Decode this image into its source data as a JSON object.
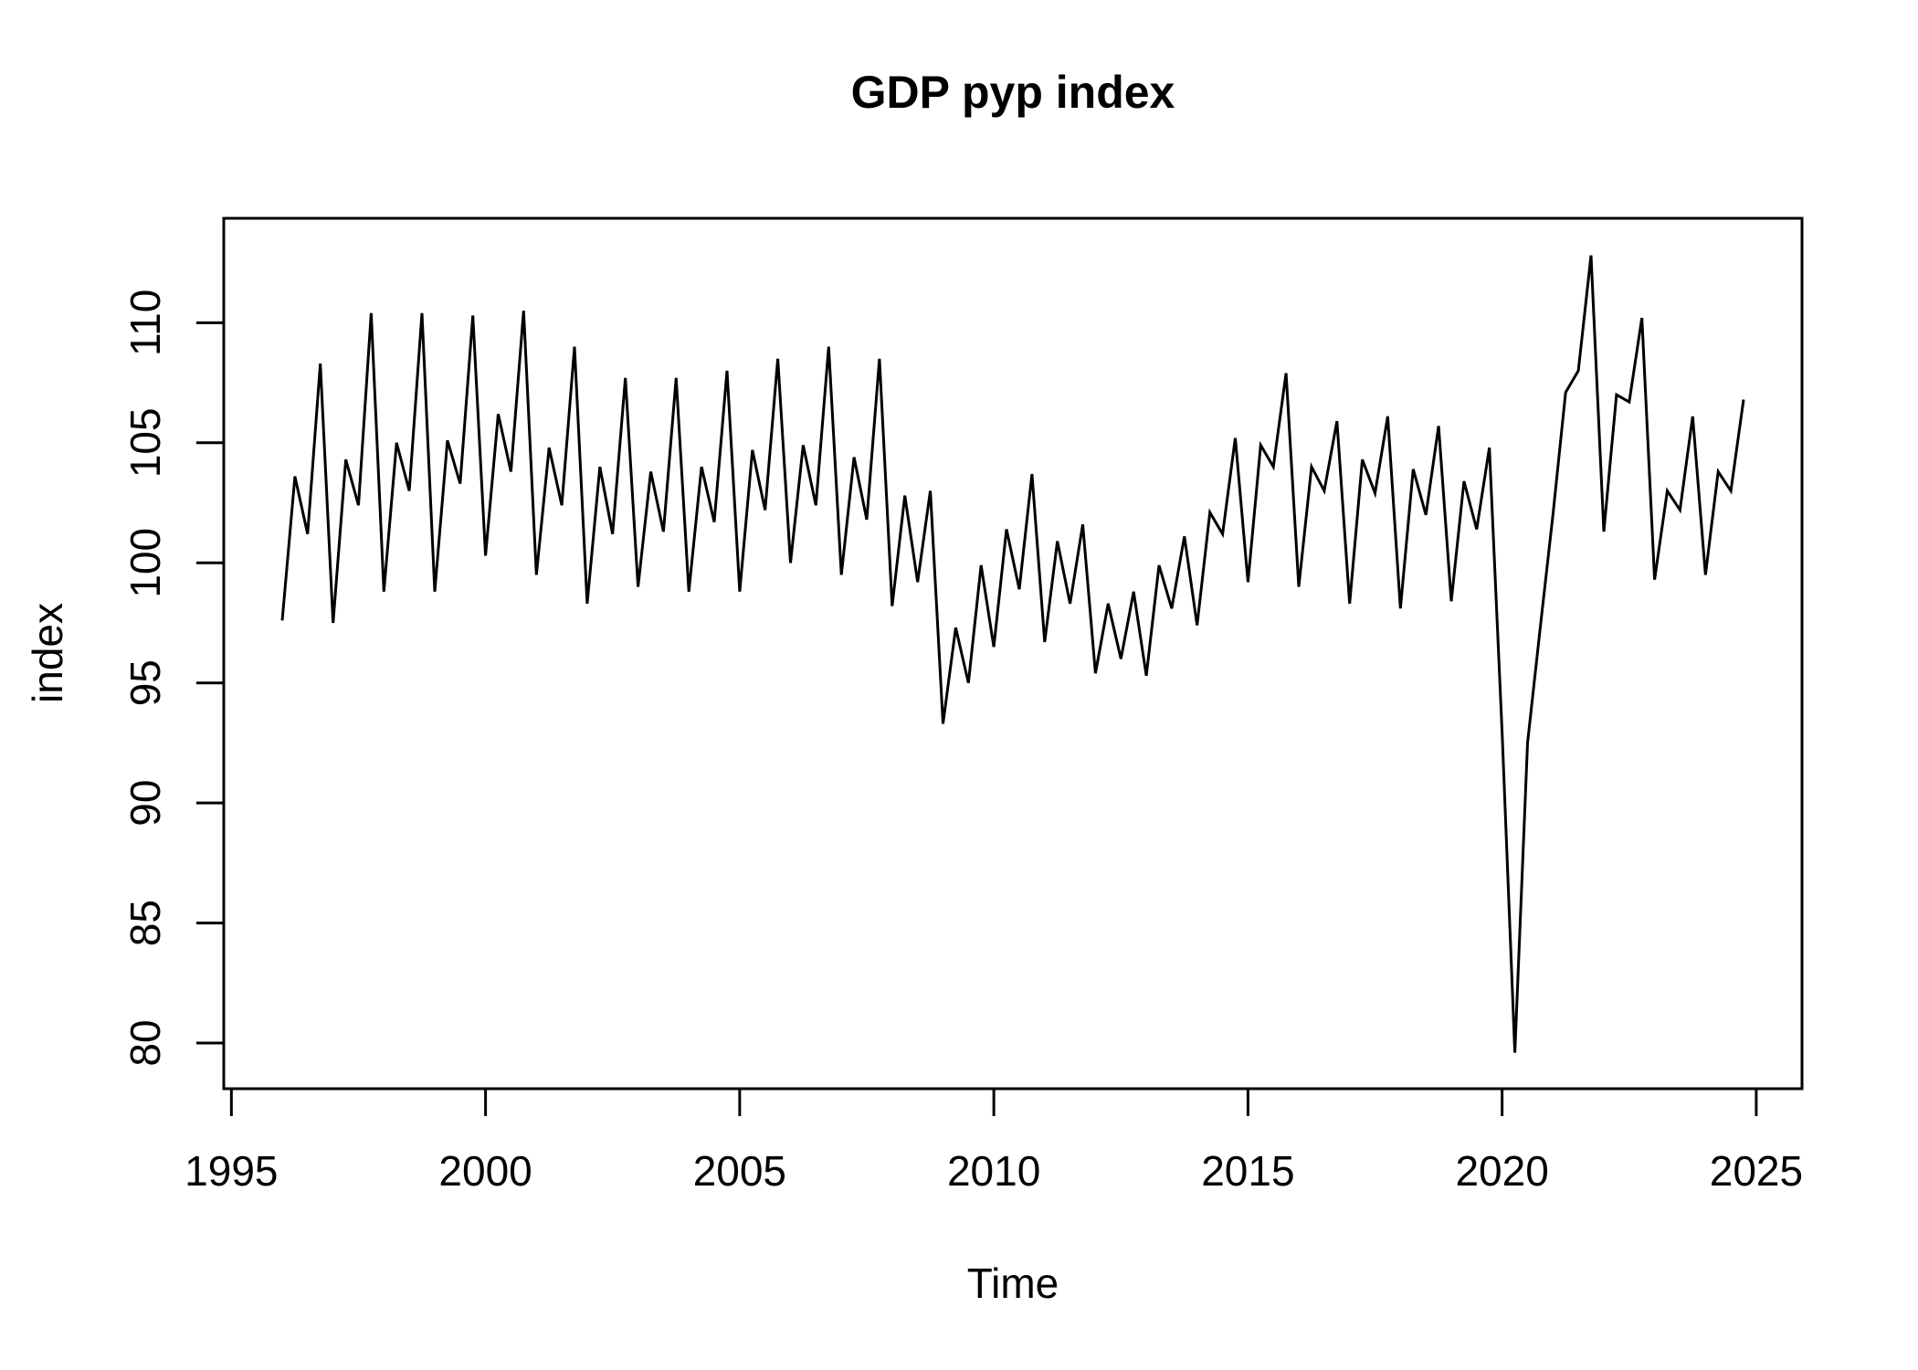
{
  "title": "GDP pyp index",
  "x_axis_label": "Time",
  "y_axis_label": "index",
  "chart_data": {
    "type": "line",
    "title": "GDP pyp index",
    "xlabel": "Time",
    "ylabel": "index",
    "line_color": "#000000",
    "background_color": "#ffffff",
    "grid": false,
    "frequency": "quarterly",
    "x_start": 1996.0,
    "x_step": 0.25,
    "x_ticks": [
      1995,
      2000,
      2005,
      2010,
      2015,
      2020,
      2025
    ],
    "y_ticks": [
      80,
      85,
      90,
      95,
      100,
      105,
      110
    ],
    "xlim": [
      1994.85,
      2025.9
    ],
    "ylim": [
      78.1,
      114.35
    ],
    "values": [
      97.6,
      103.6,
      101.2,
      108.3,
      97.5,
      104.3,
      102.4,
      110.4,
      98.8,
      105.0,
      103.0,
      110.4,
      98.8,
      105.1,
      103.3,
      110.3,
      100.3,
      106.2,
      103.8,
      110.5,
      99.5,
      104.8,
      102.4,
      109.0,
      98.3,
      104.0,
      101.2,
      107.7,
      99.0,
      103.8,
      101.3,
      107.7,
      98.8,
      104.0,
      101.7,
      108.0,
      98.8,
      104.7,
      102.2,
      108.5,
      100.0,
      104.9,
      102.4,
      109.0,
      99.5,
      104.4,
      101.8,
      108.5,
      98.2,
      102.8,
      99.2,
      103.0,
      93.3,
      97.3,
      95.0,
      99.9,
      96.5,
      101.4,
      98.9,
      103.7,
      96.7,
      100.9,
      98.3,
      101.6,
      95.4,
      98.3,
      96.0,
      98.8,
      95.3,
      99.9,
      98.1,
      101.1,
      97.4,
      102.1,
      101.2,
      105.2,
      99.2,
      104.9,
      104.0,
      107.9,
      99.0,
      104.0,
      103.0,
      105.9,
      98.3,
      104.3,
      102.9,
      106.1,
      98.1,
      103.9,
      102.0,
      105.7,
      98.4,
      103.4,
      101.4,
      104.8,
      92.9,
      79.6,
      92.5,
      97.3,
      102.0,
      107.1,
      108.0,
      112.8,
      101.3,
      107.0,
      106.7,
      110.2,
      99.3,
      103.0,
      102.2,
      106.1,
      99.5,
      103.8,
      103.0,
      106.8
    ]
  }
}
